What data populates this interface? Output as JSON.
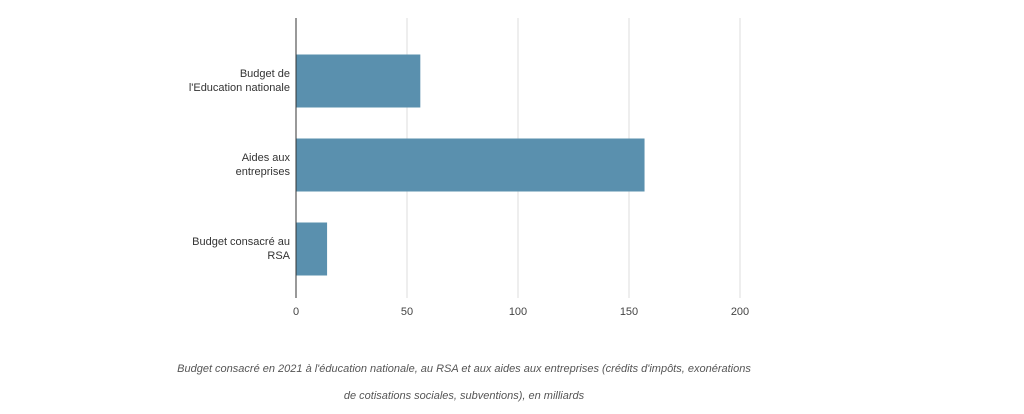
{
  "chart_data": {
    "type": "bar",
    "orientation": "horizontal",
    "categories": [
      "Budget de\nl'Education nationale",
      "Aides aux\nentreprises",
      "Budget consacré au\nRSA"
    ],
    "values": [
      56,
      157,
      14
    ],
    "color": "#5a90ae",
    "xlim": [
      0,
      200
    ],
    "xticks": [
      0,
      50,
      100,
      150,
      200
    ],
    "grid": true,
    "caption": "Budget consacré en 2021 à l'éducation nationale, au RSA et aux aides aux entreprises (crédits d'impôts, exonérations de cotisations sociales, subventions), en milliards"
  }
}
